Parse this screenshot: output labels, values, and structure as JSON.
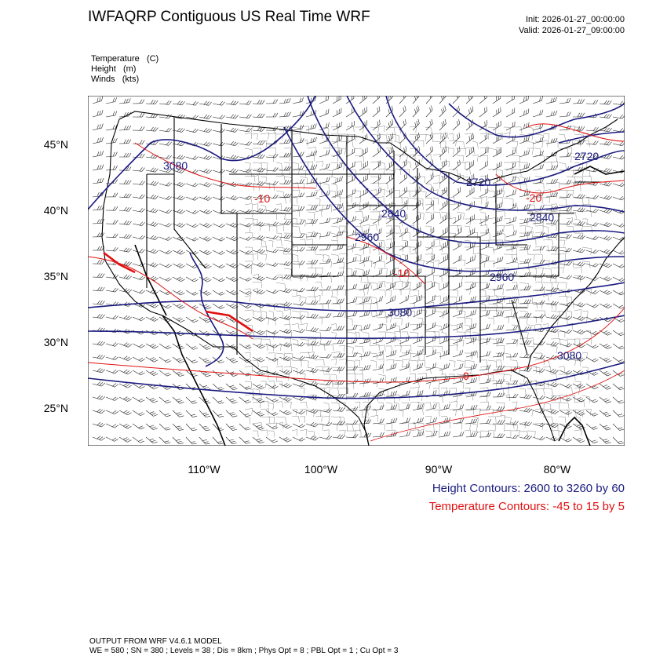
{
  "header": {
    "title": "IWFAQRP Contiguous US Real Time WRF",
    "init": "Init: 2026-01-27_00:00:00",
    "valid": "Valid: 2026-01-27_09:00:00"
  },
  "fields": [
    {
      "name": "Temperature",
      "unit": "(C)"
    },
    {
      "name": "Height",
      "unit": "(m)"
    },
    {
      "name": "Winds",
      "unit": "(kts)"
    }
  ],
  "map": {
    "lat_labels": [
      "45°N",
      "40°N",
      "35°N",
      "30°N",
      "25°N"
    ],
    "lon_labels": [
      "110°W",
      "100°W",
      "90°W",
      "80°W"
    ],
    "height_contour_labels": [
      "3080",
      "2720",
      "2840",
      "2960",
      "3080",
      "2720",
      "2840",
      "2960",
      "3080"
    ],
    "temp_contour_labels": [
      "-10",
      "-10",
      "-20",
      "0"
    ],
    "colors": {
      "height": "#1a1a80",
      "temperature": "#e01010",
      "border": "#000000",
      "county": "#333333"
    }
  },
  "legend": {
    "height": "Height Contours: 2600 to 3260 by 60",
    "temperature": "Temperature Contours: -45 to 15 by 5"
  },
  "footer": {
    "line1": "OUTPUT FROM WRF V4.6.1 MODEL",
    "line2": "WE = 580 ; SN = 380 ; Levels = 38 ; Dis = 8km ; Phys Opt = 8 ; PBL Opt = 1 ; Cu Opt = 3"
  }
}
